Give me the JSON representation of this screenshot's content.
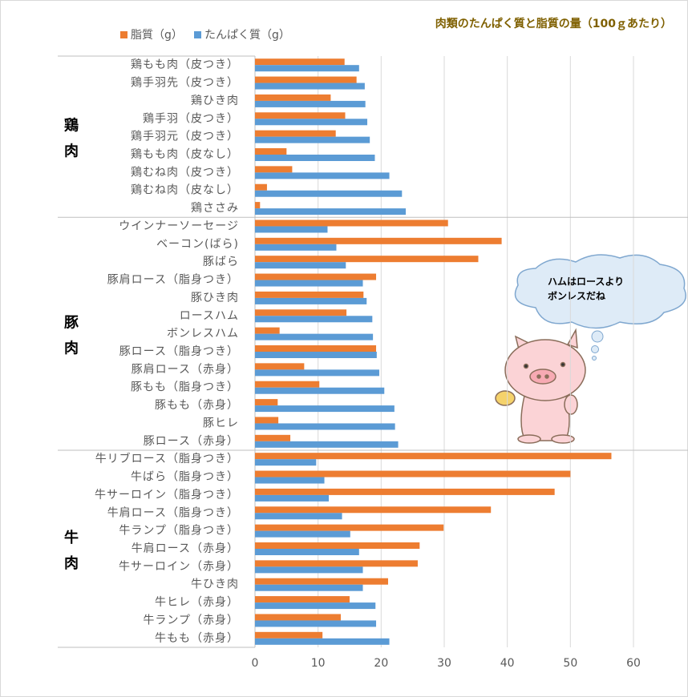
{
  "chart_data": {
    "type": "bar",
    "orientation": "horizontal",
    "title": "肉類のたんぱく質と脂質の量（100ｇあたり）",
    "groups": [
      {
        "label": "鶏肉",
        "categories": [
          "鶏もも肉（皮つき）",
          "鶏手羽先（皮つき）",
          "鶏ひき肉",
          "鶏手羽（皮つき）",
          "鶏手羽元（皮つき）",
          "鶏もも肉（皮なし）",
          "鶏むね肉（皮つき）",
          "鶏むね肉（皮なし）",
          "鶏ささみ"
        ]
      },
      {
        "label": "豚肉",
        "categories": [
          "ウインナーソーセージ",
          "ベーコン(ばら)",
          "豚ばら",
          "豚肩ロース（脂身つき）",
          "豚ひき肉",
          "ロースハム",
          "ボンレスハム",
          "豚ロース（脂身つき）",
          "豚肩ロース（赤身）",
          "豚もも（脂身つき）",
          "豚もも（赤身）",
          "豚ヒレ",
          "豚ロース（赤身）"
        ]
      },
      {
        "label": "牛肉",
        "categories": [
          "牛リブロース（脂身つき）",
          "牛ばら（脂身つき）",
          "牛サーロイン（脂身つき）",
          "牛肩ロース（脂身つき）",
          "牛ランプ（脂身つき）",
          "牛肩ロース（赤身）",
          "牛サーロイン（赤身）",
          "牛ひき肉",
          "牛ヒレ（赤身）",
          "牛ランプ（赤身）",
          "牛もも（赤身）"
        ]
      }
    ],
    "series": [
      {
        "name": "脂質（g）",
        "color": "#ed7d31",
        "values": [
          14.2,
          16.1,
          12.0,
          14.3,
          12.8,
          5.0,
          5.9,
          1.9,
          0.8,
          30.6,
          39.1,
          35.4,
          19.2,
          17.2,
          14.5,
          3.9,
          19.2,
          7.8,
          10.2,
          3.6,
          3.7,
          5.6,
          56.5,
          50.0,
          47.5,
          37.4,
          29.9,
          26.1,
          25.8,
          21.1,
          15.0,
          13.6,
          10.7
        ]
      },
      {
        "name": "たんぱく質（g）",
        "color": "#5b9bd5",
        "values": [
          16.5,
          17.4,
          17.5,
          17.8,
          18.2,
          19.0,
          21.3,
          23.3,
          23.9,
          11.5,
          12.9,
          14.4,
          17.1,
          17.7,
          18.6,
          18.7,
          19.3,
          19.7,
          20.5,
          22.1,
          22.2,
          22.7,
          9.7,
          11.0,
          11.7,
          13.8,
          15.1,
          16.5,
          17.1,
          17.1,
          19.1,
          19.2,
          21.3
        ]
      }
    ],
    "xlim": [
      0,
      60
    ],
    "xticks": [
      0,
      10,
      20,
      30,
      40,
      50,
      60
    ],
    "grid": true,
    "legend": "top-left",
    "annotation": [
      "ハムはロースより",
      "ボンレスだね"
    ]
  }
}
